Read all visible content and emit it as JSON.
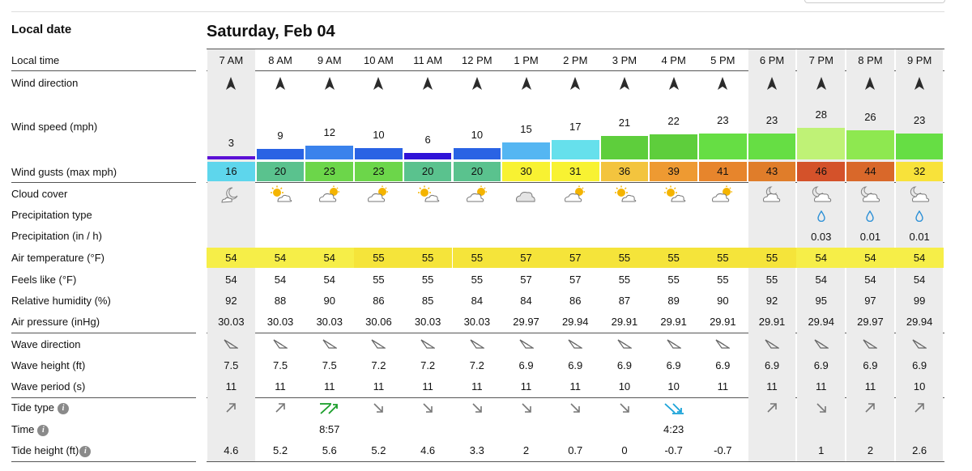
{
  "header": {
    "date_label": "Local date",
    "date": "Saturday, Feb 04"
  },
  "row_labels": {
    "time": "Local time",
    "wind_dir": "Wind direction",
    "wind_speed": "Wind speed (mph)",
    "wind_gusts": "Wind gusts (max mph)",
    "cloud": "Cloud cover",
    "precip_type": "Precipitation type",
    "precip": "Precipitation (in / h)",
    "air_temp": "Air temperature (°F)",
    "feels": "Feels like (°F)",
    "humidity": "Relative humidity (%)",
    "pressure": "Air pressure (inHg)",
    "wave_dir": "Wave direction",
    "wave_height": "Wave height (ft)",
    "wave_period": "Wave period (s)",
    "tide_type": "Tide type",
    "tide_time": "Time",
    "tide_height": "Tide height (ft)"
  },
  "colors": {
    "night_bg": "#ececec",
    "precip_drop": "#2a8fd6",
    "tide_rise": "#1a9e2a",
    "tide_fall": "#1aa3d9"
  },
  "hours": [
    {
      "time": "7 AM",
      "night": true,
      "wind_speed": "3",
      "speed_color": "#5b0fd6",
      "gust": "16",
      "gust_color": "#5ed6ec",
      "cloud": "night-partly",
      "precip_type": "",
      "precip": "",
      "temp": "54",
      "temp_color": "#f6ee48",
      "feels": "54",
      "humidity": "92",
      "pressure": "30.03",
      "wave_height": "7.5",
      "wave_period": "11",
      "tide_type": "rising",
      "tide_time": "",
      "tide_height": "4.6"
    },
    {
      "time": "8 AM",
      "night": false,
      "wind_speed": "9",
      "speed_color": "#2a63e4",
      "gust": "20",
      "gust_color": "#5ac28e",
      "cloud": "sun-cloud",
      "precip_type": "",
      "precip": "",
      "temp": "54",
      "temp_color": "#f6ee48",
      "feels": "54",
      "humidity": "88",
      "pressure": "30.03",
      "wave_height": "7.5",
      "wave_period": "11",
      "tide_type": "rising",
      "tide_time": "",
      "tide_height": "5.2"
    },
    {
      "time": "9 AM",
      "night": false,
      "wind_speed": "12",
      "speed_color": "#3a82ec",
      "gust": "23",
      "gust_color": "#6cd64a",
      "cloud": "cloud-sun",
      "precip_type": "",
      "precip": "",
      "temp": "54",
      "temp_color": "#f6ee48",
      "feels": "54",
      "humidity": "90",
      "pressure": "30.03",
      "wave_height": "7.5",
      "wave_period": "11",
      "tide_type": "high",
      "tide_time": "8:57",
      "tide_height": "5.6"
    },
    {
      "time": "10 AM",
      "night": false,
      "wind_speed": "10",
      "speed_color": "#2a63e4",
      "gust": "23",
      "gust_color": "#6cd64a",
      "cloud": "cloud-sun",
      "precip_type": "",
      "precip": "",
      "temp": "55",
      "temp_color": "#f5e43a",
      "feels": "55",
      "humidity": "86",
      "pressure": "30.06",
      "wave_height": "7.2",
      "wave_period": "11",
      "tide_type": "falling",
      "tide_time": "",
      "tide_height": "5.2"
    },
    {
      "time": "11 AM",
      "night": false,
      "wind_speed": "6",
      "speed_color": "#2f14d8",
      "gust": "20",
      "gust_color": "#5ac28e",
      "cloud": "sun-cloud",
      "precip_type": "",
      "precip": "",
      "temp": "55",
      "temp_color": "#f5e43a",
      "feels": "55",
      "humidity": "85",
      "pressure": "30.03",
      "wave_height": "7.2",
      "wave_period": "11",
      "tide_type": "falling",
      "tide_time": "",
      "tide_height": "4.6"
    },
    {
      "time": "12 PM",
      "night": false,
      "wind_speed": "10",
      "speed_color": "#2a63e4",
      "gust": "20",
      "gust_color": "#5ac28e",
      "cloud": "cloud-sun",
      "precip_type": "",
      "precip": "",
      "temp": "55",
      "temp_color": "#f5e43a",
      "feels": "55",
      "humidity": "84",
      "pressure": "30.03",
      "wave_height": "7.2",
      "wave_period": "11",
      "tide_type": "falling",
      "tide_time": "",
      "tide_height": "3.3"
    },
    {
      "time": "1 PM",
      "night": false,
      "wind_speed": "15",
      "speed_color": "#55b6f2",
      "gust": "30",
      "gust_color": "#f8f232",
      "cloud": "cloudy",
      "precip_type": "",
      "precip": "",
      "temp": "57",
      "temp_color": "#f5e43a",
      "feels": "57",
      "humidity": "84",
      "pressure": "29.97",
      "wave_height": "6.9",
      "wave_period": "11",
      "tide_type": "falling",
      "tide_time": "",
      "tide_height": "2"
    },
    {
      "time": "2 PM",
      "night": false,
      "wind_speed": "17",
      "speed_color": "#66e0ec",
      "gust": "31",
      "gust_color": "#f8f232",
      "cloud": "cloud-sun",
      "precip_type": "",
      "precip": "",
      "temp": "57",
      "temp_color": "#f5e43a",
      "feels": "57",
      "humidity": "86",
      "pressure": "29.94",
      "wave_height": "6.9",
      "wave_period": "11",
      "tide_type": "falling",
      "tide_time": "",
      "tide_height": "0.7"
    },
    {
      "time": "3 PM",
      "night": false,
      "wind_speed": "21",
      "speed_color": "#5ece3c",
      "gust": "36",
      "gust_color": "#f3c43e",
      "cloud": "sun-cloud",
      "precip_type": "",
      "precip": "",
      "temp": "55",
      "temp_color": "#f5e43a",
      "feels": "55",
      "humidity": "87",
      "pressure": "29.91",
      "wave_height": "6.9",
      "wave_period": "10",
      "tide_type": "falling",
      "tide_time": "",
      "tide_height": "0"
    },
    {
      "time": "4 PM",
      "night": false,
      "wind_speed": "22",
      "speed_color": "#5ece3c",
      "gust": "39",
      "gust_color": "#ee9a32",
      "cloud": "sun-cloud",
      "precip_type": "",
      "precip": "",
      "temp": "55",
      "temp_color": "#f5e43a",
      "feels": "55",
      "humidity": "89",
      "pressure": "29.91",
      "wave_height": "6.9",
      "wave_period": "10",
      "tide_type": "low",
      "tide_time": "4:23",
      "tide_height": "-0.7"
    },
    {
      "time": "5 PM",
      "night": false,
      "wind_speed": "23",
      "speed_color": "#66de44",
      "gust": "41",
      "gust_color": "#e7852c",
      "cloud": "cloud-sun",
      "precip_type": "",
      "precip": "",
      "temp": "55",
      "temp_color": "#f5e43a",
      "feels": "55",
      "humidity": "90",
      "pressure": "29.91",
      "wave_height": "6.9",
      "wave_period": "11",
      "tide_type": "",
      "tide_time": "",
      "tide_height": "-0.7"
    },
    {
      "time": "6 PM",
      "night": true,
      "wind_speed": "23",
      "speed_color": "#66de44",
      "gust": "43",
      "gust_color": "#e07d2a",
      "cloud": "night-cloud",
      "precip_type": "",
      "precip": "",
      "temp": "55",
      "temp_color": "#f5e43a",
      "feels": "55",
      "humidity": "92",
      "pressure": "29.91",
      "wave_height": "6.9",
      "wave_period": "11",
      "tide_type": "rising",
      "tide_time": "",
      "tide_height": ""
    },
    {
      "time": "7 PM",
      "night": true,
      "wind_speed": "28",
      "speed_color": "#bff276",
      "gust": "46",
      "gust_color": "#d4522a",
      "cloud": "night-rain",
      "precip_type": "rain",
      "precip": "0.03",
      "temp": "54",
      "temp_color": "#f6ee48",
      "feels": "54",
      "humidity": "95",
      "pressure": "29.94",
      "wave_height": "6.9",
      "wave_period": "11",
      "tide_type": "falling",
      "tide_time": "",
      "tide_height": "1"
    },
    {
      "time": "8 PM",
      "night": true,
      "wind_speed": "26",
      "speed_color": "#8ee850",
      "gust": "44",
      "gust_color": "#d9682a",
      "cloud": "night-rain",
      "precip_type": "rain",
      "precip": "0.01",
      "temp": "54",
      "temp_color": "#f6ee48",
      "feels": "54",
      "humidity": "97",
      "pressure": "29.97",
      "wave_height": "6.9",
      "wave_period": "11",
      "tide_type": "rising",
      "tide_time": "",
      "tide_height": "2"
    },
    {
      "time": "9 PM",
      "night": true,
      "wind_speed": "23",
      "speed_color": "#66de44",
      "gust": "32",
      "gust_color": "#f8e23a",
      "cloud": "night-rain",
      "precip_type": "rain",
      "precip": "0.01",
      "temp": "54",
      "temp_color": "#f6ee48",
      "feels": "54",
      "humidity": "99",
      "pressure": "29.94",
      "wave_height": "6.9",
      "wave_period": "10",
      "tide_type": "rising",
      "tide_time": "",
      "tide_height": "2.6"
    }
  ]
}
